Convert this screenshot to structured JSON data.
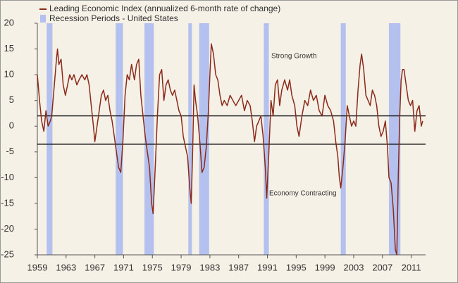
{
  "chart_data": {
    "type": "line",
    "series": [
      {
        "name": "Leading Economic Index (annualized 6-month rate of change)",
        "color": "#8b2a1a",
        "x": [
          1959.0,
          1959.3,
          1959.6,
          1959.9,
          1960.2,
          1960.5,
          1960.8,
          1961.0,
          1961.3,
          1961.6,
          1961.8,
          1962.0,
          1962.3,
          1962.6,
          1962.9,
          1963.2,
          1963.5,
          1963.8,
          1964.1,
          1964.5,
          1964.8,
          1965.2,
          1965.6,
          1965.9,
          1966.2,
          1966.5,
          1966.8,
          1967.0,
          1967.3,
          1967.6,
          1967.9,
          1968.2,
          1968.5,
          1968.8,
          1969.1,
          1969.4,
          1969.7,
          1970.0,
          1970.3,
          1970.6,
          1970.9,
          1971.2,
          1971.5,
          1971.8,
          1972.1,
          1972.5,
          1972.8,
          1973.1,
          1973.4,
          1973.7,
          1974.0,
          1974.3,
          1974.6,
          1974.9,
          1975.1,
          1975.4,
          1975.7,
          1976.0,
          1976.3,
          1976.6,
          1976.9,
          1977.2,
          1977.5,
          1977.8,
          1978.1,
          1978.4,
          1978.7,
          1979.0,
          1979.3,
          1979.6,
          1979.9,
          1980.2,
          1980.4,
          1980.6,
          1980.8,
          1981.0,
          1981.3,
          1981.6,
          1981.9,
          1982.2,
          1982.5,
          1982.8,
          1983.0,
          1983.2,
          1983.5,
          1983.8,
          1984.1,
          1984.4,
          1984.7,
          1985.0,
          1985.4,
          1985.8,
          1986.2,
          1986.6,
          1987.0,
          1987.4,
          1987.8,
          1988.2,
          1988.6,
          1988.9,
          1989.2,
          1989.5,
          1989.8,
          1990.1,
          1990.4,
          1990.7,
          1990.9,
          1991.2,
          1991.5,
          1991.8,
          1992.1,
          1992.4,
          1992.7,
          1993.0,
          1993.4,
          1993.8,
          1994.1,
          1994.4,
          1994.8,
          1995.1,
          1995.4,
          1995.8,
          1996.2,
          1996.6,
          1997.0,
          1997.4,
          1997.8,
          1998.2,
          1998.6,
          1999.0,
          1999.4,
          1999.8,
          2000.2,
          2000.5,
          2000.8,
          2001.0,
          2001.2,
          2001.5,
          2001.8,
          2002.1,
          2002.4,
          2002.7,
          2003.0,
          2003.3,
          2003.6,
          2003.9,
          2004.1,
          2004.4,
          2004.7,
          2005.0,
          2005.3,
          2005.6,
          2005.9,
          2006.2,
          2006.5,
          2006.8,
          2007.1,
          2007.4,
          2007.7,
          2007.9,
          2008.2,
          2008.5,
          2008.8,
          2009.0,
          2009.2,
          2009.4,
          2009.6,
          2009.8,
          2010.0,
          2010.3,
          2010.6,
          2010.9,
          2011.2,
          2011.5,
          2011.8,
          2012.1,
          2012.4,
          2012.6
        ],
        "values": [
          10,
          5,
          1,
          -1,
          3,
          0,
          1,
          2,
          7,
          12,
          15,
          12,
          13,
          8,
          6,
          8,
          10,
          9,
          10,
          8,
          9,
          10,
          9,
          10,
          8,
          4,
          0,
          -3,
          0,
          3,
          6,
          7,
          5,
          6,
          3,
          1,
          -2,
          -5,
          -8,
          -9,
          -3,
          6,
          10,
          9,
          12,
          9,
          12,
          13,
          6,
          2,
          -2,
          -5,
          -8,
          -15,
          -17,
          -8,
          2,
          10,
          11,
          5,
          8,
          9,
          7,
          6,
          7,
          5,
          3,
          2,
          -2,
          -4,
          -6,
          -12,
          -15,
          -5,
          8,
          5,
          2,
          -3,
          -9,
          -8,
          -4,
          3,
          10,
          16,
          14,
          10,
          9,
          6,
          4,
          5,
          4,
          6,
          5,
          4,
          5,
          6,
          3,
          5,
          4,
          1,
          -3,
          0,
          1,
          2,
          -2,
          -8,
          -14,
          -5,
          5,
          2,
          8,
          9,
          4,
          7,
          9,
          7,
          9,
          6,
          4,
          0,
          -2,
          2,
          5,
          4,
          7,
          5,
          6,
          3,
          2,
          6,
          4,
          3,
          1,
          -3,
          -6,
          -10,
          -12,
          -8,
          -3,
          4,
          2,
          0,
          1,
          0,
          7,
          12,
          14,
          11,
          6,
          5,
          4,
          7,
          6,
          4,
          0,
          -2,
          -1,
          1,
          -4,
          -10,
          -11,
          -16,
          -24,
          -25,
          -10,
          2,
          9,
          11,
          11,
          8,
          5,
          4,
          5,
          -1,
          3,
          4,
          0,
          1
        ]
      }
    ],
    "recessions": {
      "name": "Recession Periods - United States",
      "color": "#b4c1ee",
      "periods": [
        [
          1960.3,
          1961.1
        ],
        [
          1969.9,
          1970.9
        ],
        [
          1973.9,
          1975.2
        ],
        [
          1980.0,
          1980.5
        ],
        [
          1981.5,
          1982.9
        ],
        [
          1990.5,
          1991.2
        ],
        [
          2001.2,
          2001.9
        ],
        [
          2007.9,
          2009.5
        ]
      ]
    },
    "hlines": [
      2,
      -3.5
    ],
    "annotations": [
      "Strong Growth",
      "Economy Contracting"
    ],
    "xlim": [
      1959,
      2013
    ],
    "ylim": [
      -25,
      20
    ],
    "xticks": [
      1959,
      1963,
      1967,
      1971,
      1975,
      1979,
      1983,
      1987,
      1991,
      1995,
      1999,
      2003,
      2007,
      2011
    ],
    "yticks": [
      -25,
      -20,
      -15,
      -10,
      -5,
      0,
      5,
      10,
      15,
      20
    ]
  }
}
